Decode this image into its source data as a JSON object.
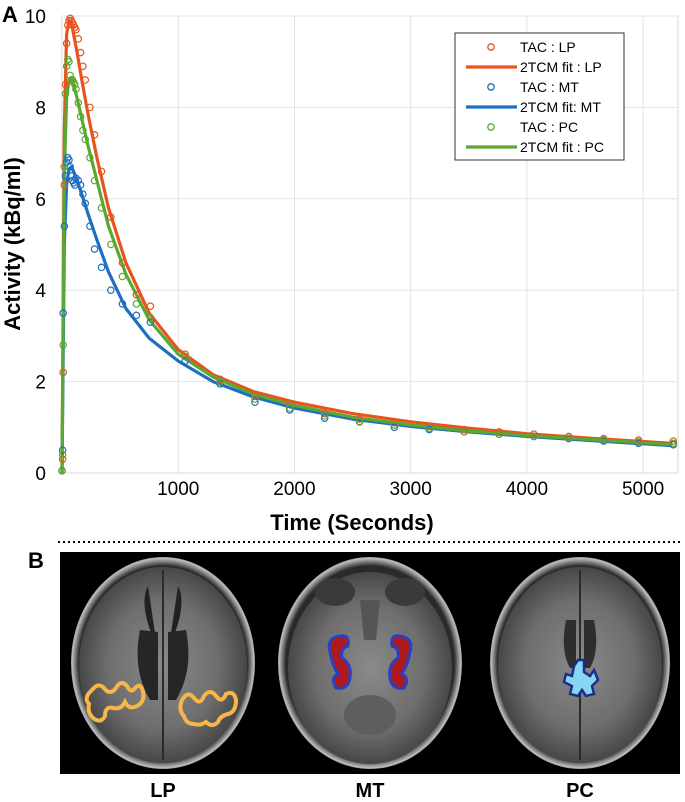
{
  "panels": {
    "a_label": "A",
    "b_label": "B"
  },
  "chart_data": {
    "type": "line",
    "xlabel": "Time (Seconds)",
    "ylabel": "Activity (kBq/ml)",
    "xlim": [
      0,
      5300
    ],
    "ylim": [
      0,
      10
    ],
    "xticks": [
      1000,
      2000,
      3000,
      4000,
      5000
    ],
    "yticks": [
      0,
      2,
      4,
      6,
      8,
      10
    ],
    "grid": true,
    "legend_position": "top-right",
    "series": [
      {
        "name": "2TCM fit : LP",
        "kind": "line",
        "color": "#e8541e",
        "x": [
          0,
          20,
          40,
          60,
          80,
          100,
          130,
          170,
          220,
          300,
          400,
          550,
          750,
          1000,
          1300,
          1650,
          2000,
          2500,
          3000,
          3500,
          4000,
          4500,
          5000,
          5250
        ],
        "y": [
          0,
          7.5,
          9.6,
          9.9,
          9.85,
          9.6,
          9.2,
          8.6,
          7.9,
          6.9,
          5.8,
          4.6,
          3.5,
          2.7,
          2.15,
          1.78,
          1.55,
          1.3,
          1.12,
          0.98,
          0.86,
          0.77,
          0.69,
          0.65
        ]
      },
      {
        "name": "TAC : LP",
        "kind": "markers",
        "color": "#e8541e",
        "x": [
          0,
          5,
          10,
          20,
          30,
          40,
          50,
          60,
          70,
          80,
          90,
          100,
          110,
          120,
          140,
          160,
          180,
          200,
          240,
          280,
          340,
          420,
          520,
          640,
          760,
          1060,
          1360,
          1660,
          1960,
          2260,
          2560,
          2860,
          3160,
          3460,
          3760,
          4060,
          4360,
          4660,
          4960,
          5260
        ],
        "y": [
          0.05,
          0.3,
          2.2,
          6.3,
          8.5,
          9.4,
          9.8,
          9.9,
          9.95,
          9.9,
          9.85,
          9.8,
          9.75,
          9.7,
          9.5,
          9.2,
          8.9,
          8.6,
          8.0,
          7.4,
          6.6,
          5.6,
          4.6,
          3.9,
          3.65,
          2.6,
          2.05,
          1.7,
          1.5,
          1.3,
          1.18,
          1.1,
          1.02,
          0.95,
          0.9,
          0.85,
          0.8,
          0.75,
          0.72,
          0.7
        ]
      },
      {
        "name": "2TCM fit: MT",
        "kind": "line",
        "color": "#1f6fc0",
        "x": [
          0,
          20,
          40,
          60,
          80,
          100,
          130,
          170,
          220,
          300,
          400,
          550,
          750,
          1000,
          1300,
          1650,
          2000,
          2500,
          3000,
          3500,
          4000,
          4500,
          5000,
          5250
        ],
        "y": [
          0,
          5.0,
          6.3,
          6.65,
          6.7,
          6.6,
          6.4,
          6.1,
          5.7,
          5.1,
          4.4,
          3.6,
          2.95,
          2.45,
          2.0,
          1.66,
          1.42,
          1.18,
          1.02,
          0.9,
          0.8,
          0.72,
          0.64,
          0.6
        ]
      },
      {
        "name": "TAC : MT",
        "kind": "markers",
        "color": "#1f6fc0",
        "x": [
          0,
          5,
          10,
          20,
          30,
          40,
          50,
          60,
          70,
          80,
          90,
          100,
          110,
          120,
          140,
          160,
          180,
          200,
          240,
          280,
          340,
          420,
          520,
          640,
          760,
          1060,
          1360,
          1660,
          1960,
          2260,
          2560,
          2860,
          3160,
          3460,
          3760,
          4060,
          4360,
          4660,
          4960,
          5260
        ],
        "y": [
          0.05,
          0.5,
          3.5,
          5.4,
          6.5,
          6.8,
          6.9,
          6.85,
          6.7,
          6.5,
          6.4,
          6.35,
          6.3,
          6.45,
          6.4,
          6.3,
          6.1,
          5.9,
          5.4,
          4.9,
          4.5,
          4.0,
          3.7,
          3.45,
          3.3,
          2.45,
          1.95,
          1.55,
          1.38,
          1.2,
          1.12,
          1.0,
          0.95,
          0.9,
          0.85,
          0.8,
          0.75,
          0.7,
          0.65,
          0.62
        ]
      },
      {
        "name": "2TCM fit : PC",
        "kind": "line",
        "color": "#5aa832",
        "x": [
          0,
          20,
          40,
          60,
          80,
          100,
          130,
          170,
          220,
          300,
          400,
          550,
          750,
          1000,
          1300,
          1650,
          2000,
          2500,
          3000,
          3500,
          4000,
          4500,
          5000,
          5250
        ],
        "y": [
          0,
          6.5,
          8.2,
          8.6,
          8.65,
          8.5,
          8.2,
          7.75,
          7.2,
          6.4,
          5.4,
          4.35,
          3.35,
          2.6,
          2.1,
          1.72,
          1.48,
          1.22,
          1.05,
          0.92,
          0.82,
          0.74,
          0.66,
          0.62
        ]
      },
      {
        "name": "TAC : PC",
        "kind": "markers",
        "color": "#5aa832",
        "x": [
          0,
          5,
          10,
          20,
          30,
          40,
          50,
          60,
          70,
          80,
          90,
          100,
          110,
          120,
          140,
          160,
          180,
          200,
          240,
          280,
          340,
          420,
          520,
          640,
          760,
          1060,
          1360,
          1660,
          1960,
          2260,
          2560,
          2860,
          3160,
          3460,
          3760,
          4060,
          4360,
          4660,
          4960,
          5260
        ],
        "y": [
          0.05,
          0.4,
          2.8,
          6.7,
          8.3,
          8.9,
          9.05,
          9.0,
          8.7,
          8.6,
          8.6,
          8.55,
          8.5,
          8.4,
          8.1,
          7.8,
          7.5,
          7.3,
          6.9,
          6.4,
          5.8,
          5.0,
          4.3,
          3.7,
          3.4,
          2.55,
          2.0,
          1.62,
          1.42,
          1.25,
          1.13,
          1.05,
          0.98,
          0.9,
          0.85,
          0.8,
          0.76,
          0.72,
          0.68,
          0.65
        ]
      }
    ]
  },
  "legend": [
    {
      "label": "TAC : LP",
      "kind": "marker",
      "color": "#e8541e"
    },
    {
      "label": "2TCM fit : LP",
      "kind": "line",
      "color": "#e8541e"
    },
    {
      "label": "TAC : MT",
      "kind": "marker",
      "color": "#1f6fc0"
    },
    {
      "label": "2TCM fit: MT",
      "kind": "line",
      "color": "#1f6fc0"
    },
    {
      "label": "TAC : PC",
      "kind": "marker",
      "color": "#5aa832"
    },
    {
      "label": "2TCM fit : PC",
      "kind": "line",
      "color": "#5aa832"
    }
  ],
  "brains": [
    {
      "label": "LP",
      "roi_color": "#f7b54a"
    },
    {
      "label": "MT",
      "roi_color": "#b0191c"
    },
    {
      "label": "PC",
      "roi_color": "#86d6f4"
    }
  ]
}
